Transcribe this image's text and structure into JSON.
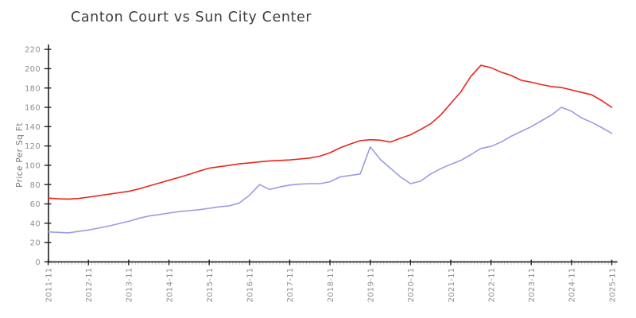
{
  "chart_data": {
    "type": "line",
    "title": "Canton Court vs Sun City Center",
    "xlabel": "",
    "ylabel": "Price Per Sq Ft",
    "x_start": "2011-11",
    "x_end": "2025-11",
    "sample_interval_months": 3,
    "x": [
      0,
      3,
      6,
      9,
      12,
      15,
      18,
      21,
      24,
      27,
      30,
      33,
      36,
      39,
      42,
      45,
      48,
      51,
      54,
      57,
      60,
      63,
      66,
      69,
      72,
      75,
      78,
      81,
      84,
      87,
      90,
      93,
      96,
      99,
      102,
      105,
      108,
      111,
      114,
      117,
      120,
      123,
      126,
      129,
      132,
      135,
      138,
      141,
      144,
      147,
      150,
      153,
      156,
      159,
      162,
      165,
      168
    ],
    "x_tick_labels": [
      "2011-11",
      "2012-11",
      "2013-11",
      "2014-11",
      "2015-11",
      "2016-11",
      "2017-11",
      "2018-11",
      "2019-11",
      "2020-11",
      "2021-11",
      "2022-11",
      "2023-11",
      "2024-11",
      "2025-11"
    ],
    "y_ticks": [
      0,
      20,
      40,
      60,
      80,
      100,
      120,
      140,
      160,
      180,
      200,
      220
    ],
    "ylim": [
      0,
      220
    ],
    "grid": false,
    "legend": "none",
    "series": [
      {
        "name": "Canton Court",
        "color": "#e8261d",
        "values": [
          66,
          65.3,
          65,
          65.6,
          67,
          68.5,
          70,
          71.5,
          73,
          75.5,
          78.5,
          81.5,
          84.5,
          87.5,
          90.5,
          94,
          97,
          98.5,
          100,
          101.5,
          102.5,
          103.5,
          104.5,
          105,
          105.5,
          106.5,
          107.5,
          109.5,
          113,
          118,
          122,
          125.5,
          126.5,
          126,
          124,
          128,
          131.5,
          137,
          143,
          152,
          164,
          176,
          192,
          203.5,
          201,
          196.5,
          193,
          188,
          186,
          183.5,
          181.5,
          180.5,
          178,
          175.5,
          173,
          167,
          160
        ]
      },
      {
        "name": "Sun City Center",
        "color": "#9b9be4",
        "values": [
          31,
          30.5,
          30,
          31.5,
          33,
          35,
          37,
          39.5,
          42,
          45,
          47.5,
          49,
          50.5,
          52,
          53,
          54,
          55.5,
          57,
          58,
          61,
          69,
          80,
          75,
          77.5,
          79.5,
          80.5,
          81,
          81,
          83,
          88,
          89.5,
          91,
          119,
          106,
          97,
          88,
          81,
          83.5,
          91,
          96.5,
          101,
          105,
          111,
          117.5,
          119.5,
          124,
          130,
          135,
          140,
          146,
          152,
          160,
          156,
          149,
          144.5,
          139,
          133
        ]
      }
    ]
  },
  "styles": {
    "background": "#ffffff",
    "axis_color": "#1f1f1f",
    "major_tick_color": "#1f1f1f",
    "minor_tick_color": "#c9c9c9",
    "tick_label_color": "#8f8f8f",
    "title_color": "#3d3d3d",
    "ylabel_color": "#787878"
  }
}
